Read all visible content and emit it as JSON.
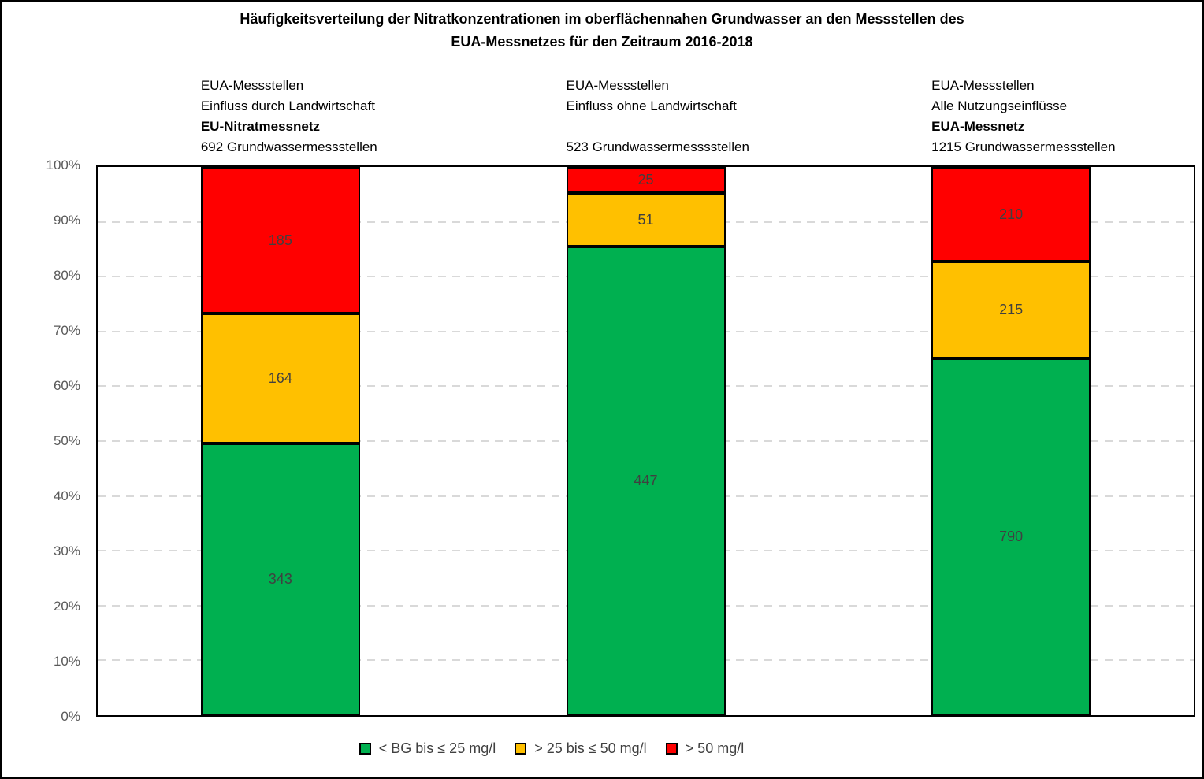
{
  "chart_data": {
    "type": "bar",
    "stacked": true,
    "percent_axis": true,
    "title": "Häufigkeitsverteilung der Nitratkonzentrationen im oberflächennahen Grundwasser an den Messstellen des EUA-Messnetzes für den Zeitraum 2016-2018",
    "title_lines": [
      "Häufigkeitsverteilung der Nitratkonzentrationen im oberflächennahen Grundwasser an den Messstellen des",
      "EUA-Messnetzes für den Zeitraum 2016-2018"
    ],
    "categories": [
      {
        "lines": [
          "EUA-Messstellen",
          "Einfluss durch Landwirtschaft",
          "EU-Nitratmessnetz",
          "692 Grundwassermessstellen"
        ],
        "bold_line": 2,
        "total": 692
      },
      {
        "lines": [
          "EUA-Messstellen",
          "Einfluss ohne Landwirtschaft",
          "",
          "523 Grundwassermesssstellen"
        ],
        "bold_line": -1,
        "total": 523
      },
      {
        "lines": [
          "EUA-Messstellen",
          "Alle Nutzungseinflüsse",
          "EUA-Messnetz",
          "1215 Grundwassermessstellen"
        ],
        "bold_line": 2,
        "total": 1215
      }
    ],
    "series": [
      {
        "name": "< BG bis ≤ 25 mg/l",
        "color": "#00B050",
        "values": [
          343,
          447,
          790
        ]
      },
      {
        "name": "> 25 bis ≤ 50 mg/l",
        "color": "#FFC000",
        "values": [
          164,
          51,
          215
        ]
      },
      {
        "name": "> 50 mg/l",
        "color": "#FF0000",
        "values": [
          185,
          25,
          210
        ]
      }
    ],
    "totals": [
      692,
      523,
      1215
    ],
    "ylim": [
      0,
      100
    ],
    "y_tick_labels": [
      "0%",
      "10%",
      "20%",
      "30%",
      "40%",
      "50%",
      "60%",
      "70%",
      "80%",
      "90%",
      "100%"
    ],
    "grid": "horizontal-dashed",
    "gridline_color": "#D9D9D9",
    "label_color": "#404040",
    "axis_label_color": "#595959",
    "border_color": "#000000",
    "legend_position": "bottom"
  }
}
